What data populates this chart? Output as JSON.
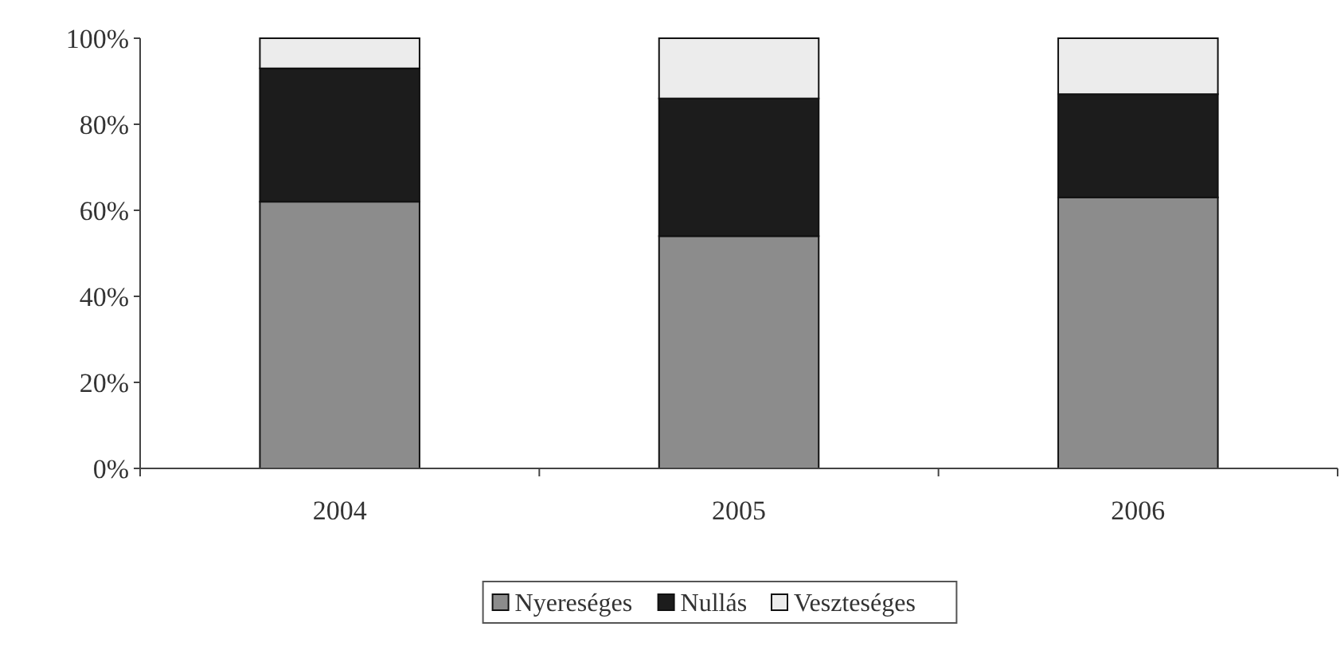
{
  "chart_data": {
    "type": "bar",
    "stacked": true,
    "categories": [
      "2004",
      "2005",
      "2006"
    ],
    "series": [
      {
        "name": "Nyereséges",
        "color": "#8c8c8c",
        "values": [
          62,
          54,
          63
        ]
      },
      {
        "name": "Nullás",
        "color": "#1c1c1c",
        "values": [
          31,
          32,
          24
        ]
      },
      {
        "name": "Veszteséges",
        "color": "#ececec",
        "values": [
          7,
          14,
          13
        ]
      }
    ],
    "ylim": [
      0,
      100
    ],
    "yticks": [
      {
        "value": 0,
        "label": "0%"
      },
      {
        "value": 20,
        "label": "20%"
      },
      {
        "value": 40,
        "label": "40%"
      },
      {
        "value": 60,
        "label": "60%"
      },
      {
        "value": 80,
        "label": "80%"
      },
      {
        "value": 100,
        "label": "100%"
      }
    ],
    "legend": "bottom",
    "grid": false
  }
}
